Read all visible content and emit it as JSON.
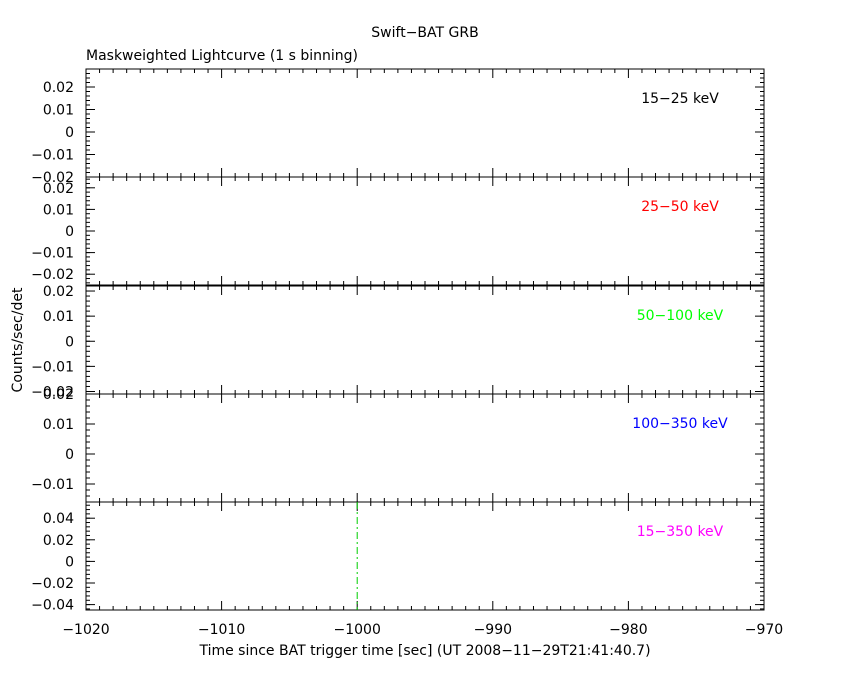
{
  "chart_data": {
    "type": "line",
    "title": "Swift−BAT GRB",
    "subtitle": "Maskweighted Lightcurve (1 s binning)",
    "xlabel": "Time since BAT trigger time [sec] (UT 2008−11−29T21:41:40.7)",
    "ylabel": "Counts/sec/det",
    "xlim": [
      -1020,
      -970
    ],
    "x_ticks": [
      -1020,
      -1010,
      -1000,
      -990,
      -980,
      -970
    ],
    "x_tick_labels": [
      "−1020",
      "−1010",
      "−1000",
      "−990",
      "−980",
      "−970"
    ],
    "grid": false,
    "panels": [
      {
        "band": "15−25 keV",
        "color": "#000000",
        "ylim": [
          -0.02,
          0.028
        ],
        "y_ticks": [
          -0.02,
          -0.01,
          0,
          0.01,
          0.02
        ],
        "y_tick_labels": [
          "−0.02",
          "−0.01",
          "0",
          "0.01",
          "0.02"
        ],
        "values": []
      },
      {
        "band": "25−50 keV",
        "color": "#ff0000",
        "ylim": [
          -0.025,
          0.025
        ],
        "y_ticks": [
          -0.02,
          -0.01,
          0,
          0.01,
          0.02
        ],
        "y_tick_labels": [
          "−0.02",
          "−0.01",
          "0",
          "0.01",
          "0.02"
        ],
        "values": []
      },
      {
        "band": "50−100 keV",
        "color": "#00ff00",
        "ylim": [
          -0.021,
          0.022
        ],
        "y_ticks": [
          -0.02,
          -0.01,
          0,
          0.01,
          0.02
        ],
        "y_tick_labels": [
          "−0.02",
          "−0.01",
          "0",
          "0.01",
          "0.02"
        ],
        "values": []
      },
      {
        "band": "100−350 keV",
        "color": "#0000ff",
        "ylim": [
          -0.016,
          0.02
        ],
        "y_ticks": [
          -0.01,
          0,
          0.01,
          0.02
        ],
        "y_tick_labels": [
          "−0.01",
          "0",
          "0.01",
          "0.02"
        ],
        "values": []
      },
      {
        "band": "15−350 keV",
        "color": "#ff00ff",
        "ylim": [
          -0.045,
          0.055
        ],
        "y_ticks": [
          -0.04,
          -0.02,
          0,
          0.02,
          0.04
        ],
        "y_tick_labels": [
          "−0.04",
          "−0.02",
          "0",
          "0.02",
          "0.04"
        ],
        "values": []
      }
    ],
    "markers": [
      {
        "x": -1000,
        "panel": 4,
        "color": "#00cc00",
        "style": "dash-dot"
      }
    ]
  }
}
